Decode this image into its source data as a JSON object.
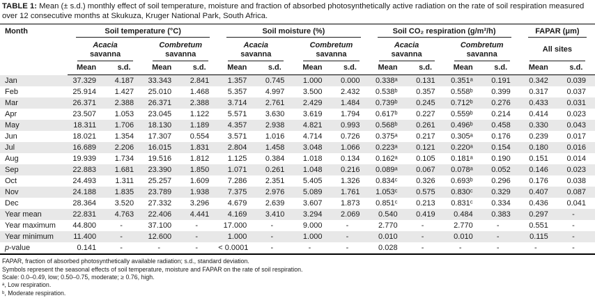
{
  "title": {
    "label": "TABLE 1:",
    "text": " Mean (± s.d.) monthly effect of soil temperature, moisture and fraction of absorbed photosynthetically active radiation on the rate of soil respiration measured over 12 consecutive months at Skukuza, Kruger National Park, South Africa."
  },
  "table": {
    "month_header": "Month",
    "mean_label": "Mean",
    "sd_label": "s.d.",
    "groups": [
      {
        "label": "Soil temperature (°C)",
        "subs": [
          {
            "name": "Acacia",
            "sub": "savanna",
            "italic": true
          },
          {
            "name": "Combretum",
            "sub": "savanna",
            "italic": true
          }
        ]
      },
      {
        "label": "Soil moisture (%)",
        "subs": [
          {
            "name": "Acacia",
            "sub": "savanna",
            "italic": true
          },
          {
            "name": "Combretum",
            "sub": "savanna",
            "italic": true
          }
        ]
      },
      {
        "label": "Soil CO₂ respiration (g/m²/h)",
        "subs": [
          {
            "name": "Acacia",
            "sub": "savanna",
            "italic": true
          },
          {
            "name": "Combretum",
            "sub": "savanna",
            "italic": true
          }
        ]
      },
      {
        "label": "FAPAR (μm)",
        "subs": [
          {
            "name": "All sites",
            "sub": "",
            "italic": false
          }
        ]
      }
    ],
    "rows": [
      {
        "label": "Jan",
        "values": [
          "37.329",
          "4.187",
          "33.343",
          "2.841",
          "1.357",
          "0.745",
          "1.000",
          "0.000",
          "0.338ᵃ",
          "0.131",
          "0.351ᵃ",
          "0.191",
          "0.342",
          "0.039"
        ]
      },
      {
        "label": "Feb",
        "values": [
          "25.914",
          "1.427",
          "25.010",
          "1.468",
          "5.357",
          "4.997",
          "3.500",
          "2.432",
          "0.538ᵇ",
          "0.357",
          "0.558ᵇ",
          "0.399",
          "0.317",
          "0.037"
        ]
      },
      {
        "label": "Mar",
        "values": [
          "26.371",
          "2.388",
          "26.371",
          "2.388",
          "3.714",
          "2.761",
          "2.429",
          "1.484",
          "0.739ᵇ",
          "0.245",
          "0.712ᵇ",
          "0.276",
          "0.433",
          "0.031"
        ]
      },
      {
        "label": "Apr",
        "values": [
          "23.507",
          "1.053",
          "23.045",
          "1.122",
          "5.571",
          "3.630",
          "3.619",
          "1.794",
          "0.617ᵇ",
          "0.227",
          "0.559ᵇ",
          "0.214",
          "0.414",
          "0.023"
        ]
      },
      {
        "label": "May",
        "values": [
          "18.311",
          "1.706",
          "18.130",
          "1.189",
          "4.357",
          "2.938",
          "4.821",
          "0.993",
          "0.568ᵇ",
          "0.261",
          "0.496ᵇ",
          "0.458",
          "0.330",
          "0.043"
        ]
      },
      {
        "label": "Jun",
        "values": [
          "18.021",
          "1.354",
          "17.307",
          "0.554",
          "3.571",
          "1.016",
          "4.714",
          "0.726",
          "0.375ᵃ",
          "0.217",
          "0.305ᵃ",
          "0.176",
          "0.239",
          "0.017"
        ]
      },
      {
        "label": "Jul",
        "values": [
          "16.689",
          "2.206",
          "16.015",
          "1.831",
          "2.804",
          "1.458",
          "3.048",
          "1.066",
          "0.223ᵃ",
          "0.121",
          "0.220ᵃ",
          "0.154",
          "0.180",
          "0.016"
        ]
      },
      {
        "label": "Aug",
        "values": [
          "19.939",
          "1.734",
          "19.516",
          "1.812",
          "1.125",
          "0.384",
          "1.018",
          "0.134",
          "0.162ᵃ",
          "0.105",
          "0.181ᵃ",
          "0.190",
          "0.151",
          "0.014"
        ]
      },
      {
        "label": "Sep",
        "values": [
          "22.883",
          "1.681",
          "23.390",
          "1.850",
          "1.071",
          "0.261",
          "1.048",
          "0.216",
          "0.089ᵃ",
          "0.067",
          "0.078ᵃ",
          "0.052",
          "0.146",
          "0.023"
        ]
      },
      {
        "label": "Oct",
        "values": [
          "24.493",
          "1.311",
          "25.257",
          "1.609",
          "7.286",
          "2.351",
          "5.405",
          "1.326",
          "0.834ᶜ",
          "0.326",
          "0.693ᵇ",
          "0.296",
          "0.176",
          "0.038"
        ]
      },
      {
        "label": "Nov",
        "values": [
          "24.188",
          "1.835",
          "23.789",
          "1.938",
          "7.375",
          "2.976",
          "5.089",
          "1.761",
          "1.053ᶜ",
          "0.575",
          "0.830ᶜ",
          "0.329",
          "0.407",
          "0.087"
        ]
      },
      {
        "label": "Dec",
        "values": [
          "28.364",
          "3.520",
          "27.332",
          "3.296",
          "4.679",
          "2.639",
          "3.607",
          "1.873",
          "0.851ᶜ",
          "0.213",
          "0.831ᶜ",
          "0.334",
          "0.436",
          "0.041"
        ]
      },
      {
        "label": "Year mean",
        "values": [
          "22.831",
          "4.763",
          "22.406",
          "4.441",
          "4.169",
          "3.410",
          "3.294",
          "2.069",
          "0.540",
          "0.419",
          "0.484",
          "0.383",
          "0.297",
          "-"
        ]
      },
      {
        "label": "Year maximum",
        "values": [
          "44.800",
          "-",
          "37.100",
          "-",
          "17.000",
          "-",
          "9.000",
          "-",
          "2.770",
          "-",
          "2.770",
          "-",
          "0.551",
          "-"
        ]
      },
      {
        "label": "Year minimum",
        "values": [
          "11.400",
          "-",
          "12.600",
          "-",
          "1.000",
          "-",
          "1.000",
          "-",
          "0.010",
          "-",
          "0.010",
          "-",
          "0.115",
          "-"
        ]
      },
      {
        "label": "p-value",
        "italic_first": true,
        "values": [
          "0.141",
          "-",
          "-",
          "-",
          "< 0.0001",
          "-",
          "-",
          "-",
          "0.028",
          "-",
          "-",
          "-",
          "-",
          "-"
        ]
      }
    ]
  },
  "footnotes": [
    "FAPAR, fraction of absorbed photosynthetically available radiation; s.d., standard deviation.",
    "Symbols represent the seasonal effects of soil temperature, moisture and FAPAR on the rate of soil respiration.",
    "Scale: 0.0–0.49, low; 0.50–0.75, moderate; ≥ 0.76, high.",
    "ᵃ, Low respiration.",
    "ᵇ, Moderate respiration.",
    "ᶜ, High respiration."
  ],
  "colors": {
    "stripe": "#e8e8e8",
    "rule": "#000000",
    "text": "#1a1a1a"
  }
}
